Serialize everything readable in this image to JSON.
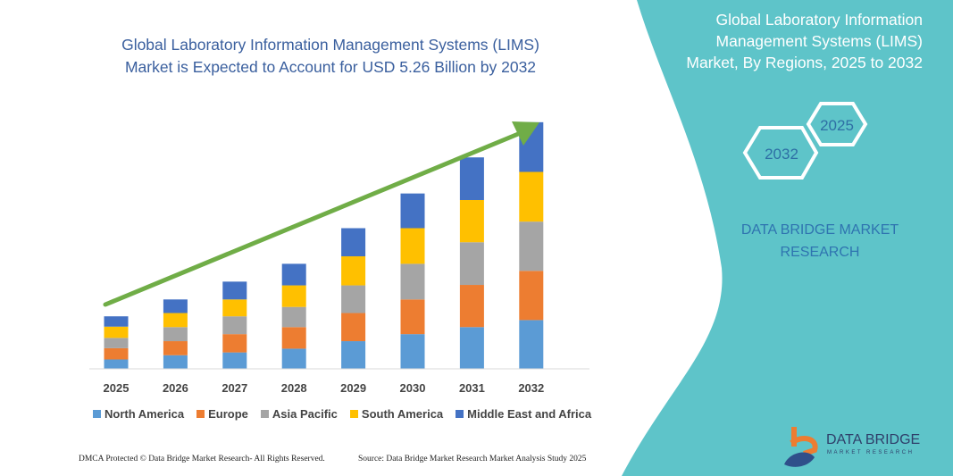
{
  "header": {
    "title_line1": "Global Laboratory Information Management Systems (LIMS)",
    "title_line2": "Market is Expected to Account for USD 5.26 Billion by 2032"
  },
  "side_panel": {
    "title_line1": "Global Laboratory Information",
    "title_line2": "Management Systems (LIMS)",
    "title_line3": "Market, By Regions, 2025 to 2032",
    "hex_start": "2025",
    "hex_end": "2032",
    "brand_line1": "DATA BRIDGE MARKET",
    "brand_line2": "RESEARCH",
    "panel_color": "#5ec4c9"
  },
  "footer": {
    "copyright": "DMCA Protected © Data Bridge Market Research- All Rights Reserved.",
    "source": "Source: Data Bridge Market Research Market Analysis Study 2025"
  },
  "logo": {
    "name": "DATA BRIDGE",
    "sub": "MARKET RESEARCH"
  },
  "chart_data": {
    "type": "bar",
    "stacked": true,
    "title": "Global Laboratory Information Management Systems (LIMS) Market is Expected to Account for USD 5.26 Billion by 2032",
    "unit": "USD Billion",
    "categories": [
      "2025",
      "2026",
      "2027",
      "2028",
      "2029",
      "2030",
      "2031",
      "2032"
    ],
    "series": [
      {
        "name": "North America",
        "color": "#5b9bd5",
        "values": [
          0.2,
          0.29,
          0.35,
          0.43,
          0.59,
          0.74,
          0.89,
          1.04
        ]
      },
      {
        "name": "Europe",
        "color": "#ed7d31",
        "values": [
          0.24,
          0.3,
          0.39,
          0.46,
          0.6,
          0.74,
          0.9,
          1.05
        ]
      },
      {
        "name": "Asia Pacific",
        "color": "#a5a5a5",
        "values": [
          0.22,
          0.3,
          0.38,
          0.43,
          0.59,
          0.76,
          0.91,
          1.05
        ]
      },
      {
        "name": "South America",
        "color": "#ffc000",
        "values": [
          0.24,
          0.3,
          0.36,
          0.46,
          0.62,
          0.76,
          0.9,
          1.06
        ]
      },
      {
        "name": "Middle East and Africa",
        "color": "#4472c4",
        "values": [
          0.22,
          0.29,
          0.38,
          0.46,
          0.6,
          0.74,
          0.91,
          1.06
        ]
      }
    ],
    "yaxis_visible": false,
    "grid": false,
    "legend_position": "bottom",
    "trend_arrow_color": "#70ad47"
  }
}
